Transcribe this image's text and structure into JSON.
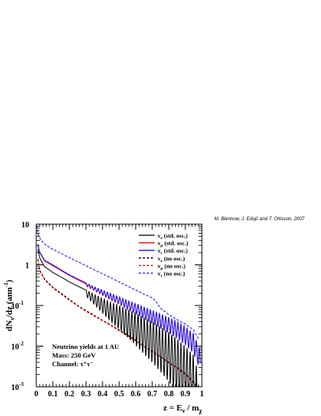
{
  "chart_data": {
    "type": "line",
    "credit": "M. Blennow, J. Edsjö and T. Ohlsson, 2007",
    "xlabel": "z = E_ν / m_χ",
    "ylabel": "dN_ν/dz (ann^-1)",
    "xlim": [
      0,
      1
    ],
    "ylim": [
      0.001,
      10
    ],
    "yscale": "log",
    "x_ticks": [
      "0",
      "0.1",
      "0.2",
      "0.3",
      "0.4",
      "0.5",
      "0.6",
      "0.7",
      "0.8",
      "0.9",
      "1"
    ],
    "y_ticks": [
      {
        "value": 10,
        "base": "10",
        "exp": ""
      },
      {
        "value": 1,
        "base": "1",
        "exp": ""
      },
      {
        "value": 0.1,
        "base": "10",
        "exp": "-1"
      },
      {
        "value": 0.01,
        "base": "10",
        "exp": "-2"
      },
      {
        "value": 0.001,
        "base": "10",
        "exp": "-3"
      }
    ],
    "annotation": [
      "Neutrino yields at 1 AU",
      "Mass: 250 GeV",
      "Channel: τ⁺τ⁻"
    ],
    "series": [
      {
        "name": "ν_e (std. osc.)",
        "flavor": "e",
        "suffix": "(std. osc.)",
        "color": "#000000",
        "dash": "solid",
        "x": [
          0.01,
          0.02,
          0.05,
          0.1,
          0.15,
          0.2,
          0.25,
          0.3,
          0.35,
          0.4,
          0.45,
          0.5,
          0.55,
          0.6,
          0.65,
          0.7,
          0.75,
          0.8,
          0.85,
          0.9,
          0.95,
          0.98
        ],
        "y": [
          2.4,
          1.5,
          0.9,
          0.65,
          0.5,
          0.38,
          0.3,
          0.24,
          0.19,
          0.15,
          0.12,
          0.1,
          0.08,
          0.065,
          0.05,
          0.04,
          0.03,
          0.022,
          0.015,
          0.01,
          0.006,
          0.002
        ],
        "oscillation": {
          "start": 0.3,
          "period": 0.0185,
          "depth_start": 0.15,
          "depth_end": 1.6
        }
      },
      {
        "name": "ν_μ (std. osc.)",
        "flavor": "μ",
        "suffix": "(std. osc.)",
        "color": "#e00000",
        "dash": "solid",
        "x": [
          0.01,
          0.02,
          0.05,
          0.1,
          0.15,
          0.2,
          0.25,
          0.3,
          0.35,
          0.4,
          0.45,
          0.5,
          0.55,
          0.6,
          0.65,
          0.7,
          0.75,
          0.8,
          0.85,
          0.9,
          0.95,
          0.99
        ],
        "y": [
          3.0,
          2.0,
          1.25,
          0.95,
          0.72,
          0.55,
          0.43,
          0.34,
          0.28,
          0.23,
          0.19,
          0.16,
          0.13,
          0.11,
          0.09,
          0.075,
          0.062,
          0.05,
          0.04,
          0.03,
          0.02,
          0.008
        ],
        "oscillation": {
          "start": 0.3,
          "period": 0.0185,
          "depth_start": 0.05,
          "depth_end": 0.5
        }
      },
      {
        "name": "ν_τ (std. osc.)",
        "flavor": "τ",
        "suffix": "(std. osc.)",
        "color": "#1a1aff",
        "dash": "solid",
        "x": [
          0.01,
          0.02,
          0.05,
          0.1,
          0.15,
          0.2,
          0.25,
          0.3,
          0.35,
          0.4,
          0.45,
          0.5,
          0.55,
          0.6,
          0.65,
          0.7,
          0.75,
          0.8,
          0.85,
          0.9,
          0.95,
          0.99
        ],
        "y": [
          3.2,
          2.1,
          1.3,
          1.0,
          0.75,
          0.57,
          0.45,
          0.36,
          0.29,
          0.24,
          0.2,
          0.165,
          0.135,
          0.112,
          0.092,
          0.076,
          0.062,
          0.05,
          0.04,
          0.03,
          0.02,
          0.008
        ],
        "oscillation": {
          "start": 0.3,
          "period": 0.0185,
          "depth_start": 0.05,
          "depth_end": 0.5
        }
      },
      {
        "name": "ν_e (no osc.)",
        "flavor": "e",
        "suffix": "(no osc.)",
        "color": "#000000",
        "dash": "dashed",
        "x": [
          0.01,
          0.02,
          0.05,
          0.1,
          0.15,
          0.2,
          0.25,
          0.3,
          0.35,
          0.4,
          0.45,
          0.5,
          0.55,
          0.6,
          0.65,
          0.7,
          0.75,
          0.8,
          0.85,
          0.9,
          0.93,
          0.96,
          0.98
        ],
        "y": [
          1.4,
          0.75,
          0.45,
          0.28,
          0.2,
          0.14,
          0.1,
          0.075,
          0.057,
          0.043,
          0.033,
          0.025,
          0.019,
          0.014,
          0.01,
          0.0075,
          0.0055,
          0.004,
          0.003,
          0.0021,
          0.0016,
          0.0012,
          0.001
        ]
      },
      {
        "name": "ν_μ (no osc.)",
        "flavor": "μ",
        "suffix": "(no osc.)",
        "color": "#e00000",
        "dash": "dashed",
        "x": [
          0.01,
          0.02,
          0.05,
          0.1,
          0.15,
          0.2,
          0.25,
          0.3,
          0.35,
          0.4,
          0.45,
          0.5,
          0.55,
          0.6,
          0.65,
          0.7,
          0.75,
          0.8,
          0.85,
          0.9,
          0.93,
          0.96,
          0.98
        ],
        "y": [
          1.35,
          0.72,
          0.43,
          0.27,
          0.19,
          0.135,
          0.097,
          0.072,
          0.055,
          0.042,
          0.032,
          0.024,
          0.018,
          0.0135,
          0.0098,
          0.0073,
          0.0054,
          0.0039,
          0.0029,
          0.002,
          0.0015,
          0.0011,
          0.001
        ]
      },
      {
        "name": "ν_τ (no osc.)",
        "flavor": "τ",
        "suffix": "(no osc.)",
        "color": "#1a1aff",
        "dash": "dashed",
        "x": [
          0.003,
          0.01,
          0.02,
          0.05,
          0.1,
          0.15,
          0.2,
          0.25,
          0.3,
          0.35,
          0.4,
          0.45,
          0.5,
          0.55,
          0.6,
          0.65,
          0.7,
          0.72,
          0.75,
          0.8,
          0.85,
          0.9,
          0.95,
          0.98
        ],
        "y": [
          9.0,
          6.0,
          4.6,
          3.2,
          2.4,
          1.9,
          1.5,
          1.2,
          0.95,
          0.75,
          0.6,
          0.48,
          0.38,
          0.3,
          0.24,
          0.19,
          0.155,
          0.13,
          0.085,
          0.06,
          0.045,
          0.035,
          0.025,
          0.015
        ]
      }
    ]
  }
}
